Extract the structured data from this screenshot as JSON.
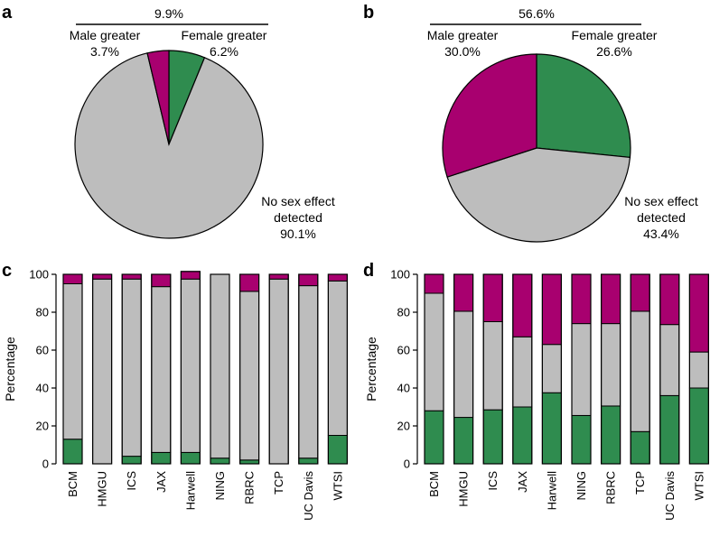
{
  "colors": {
    "male": "#a8006f",
    "female": "#2f8c4f",
    "none": "#bdbdbd",
    "stroke": "#000000"
  },
  "chart_data": [
    {
      "panel": "a",
      "type": "pie",
      "bracket_label": "9.9%",
      "slices": [
        {
          "label": "Female greater",
          "value": 6.2,
          "value_label": "6.2%",
          "category": "female"
        },
        {
          "label": "No sex effect detected",
          "value": 90.1,
          "value_label": "90.1%",
          "category": "none"
        },
        {
          "label": "Male greater",
          "value": 3.7,
          "value_label": "3.7%",
          "category": "male"
        }
      ]
    },
    {
      "panel": "b",
      "type": "pie",
      "bracket_label": "56.6%",
      "slices": [
        {
          "label": "Female greater",
          "value": 26.6,
          "value_label": "26.6%",
          "category": "female"
        },
        {
          "label": "No sex effect detected",
          "value": 43.4,
          "value_label": "43.4%",
          "category": "none"
        },
        {
          "label": "Male greater",
          "value": 30.0,
          "value_label": "30.0%",
          "category": "male"
        }
      ]
    },
    {
      "panel": "c",
      "type": "bar",
      "stacked": true,
      "ylabel": "Percentage",
      "ylim": [
        0,
        100
      ],
      "yticks": [
        0,
        20,
        40,
        60,
        80,
        100
      ],
      "categories": [
        "BCM",
        "HMGU",
        "ICS",
        "JAX",
        "Harwell",
        "NING",
        "RBRC",
        "TCP",
        "UC Davis",
        "WTSI"
      ],
      "series": [
        {
          "category": "female",
          "values": [
            13,
            0,
            4,
            6,
            6,
            3,
            2,
            0,
            3,
            15
          ]
        },
        {
          "category": "none",
          "values": [
            82,
            97.5,
            93.5,
            87.5,
            91.5,
            97,
            89,
            97.5,
            91,
            81.5
          ]
        },
        {
          "category": "male",
          "values": [
            5,
            2.5,
            2.5,
            6.5,
            4,
            0,
            9,
            2.5,
            6,
            3.5
          ]
        }
      ]
    },
    {
      "panel": "d",
      "type": "bar",
      "stacked": true,
      "ylabel": "Percentage",
      "ylim": [
        0,
        100
      ],
      "yticks": [
        0,
        20,
        40,
        60,
        80,
        100
      ],
      "categories": [
        "BCM",
        "HMGU",
        "ICS",
        "JAX",
        "Harwell",
        "NING",
        "RBRC",
        "TCP",
        "UC Davis",
        "WTSI"
      ],
      "series": [
        {
          "category": "female",
          "values": [
            28,
            24.5,
            28.5,
            30,
            37.5,
            25.5,
            30.5,
            17,
            36,
            40
          ]
        },
        {
          "category": "none",
          "values": [
            62,
            56,
            46.5,
            37,
            25.5,
            48.5,
            43.5,
            63.5,
            37.5,
            19
          ]
        },
        {
          "category": "male",
          "values": [
            10,
            19.5,
            25,
            33,
            37,
            26,
            26,
            19.5,
            26.5,
            41
          ]
        }
      ]
    }
  ]
}
